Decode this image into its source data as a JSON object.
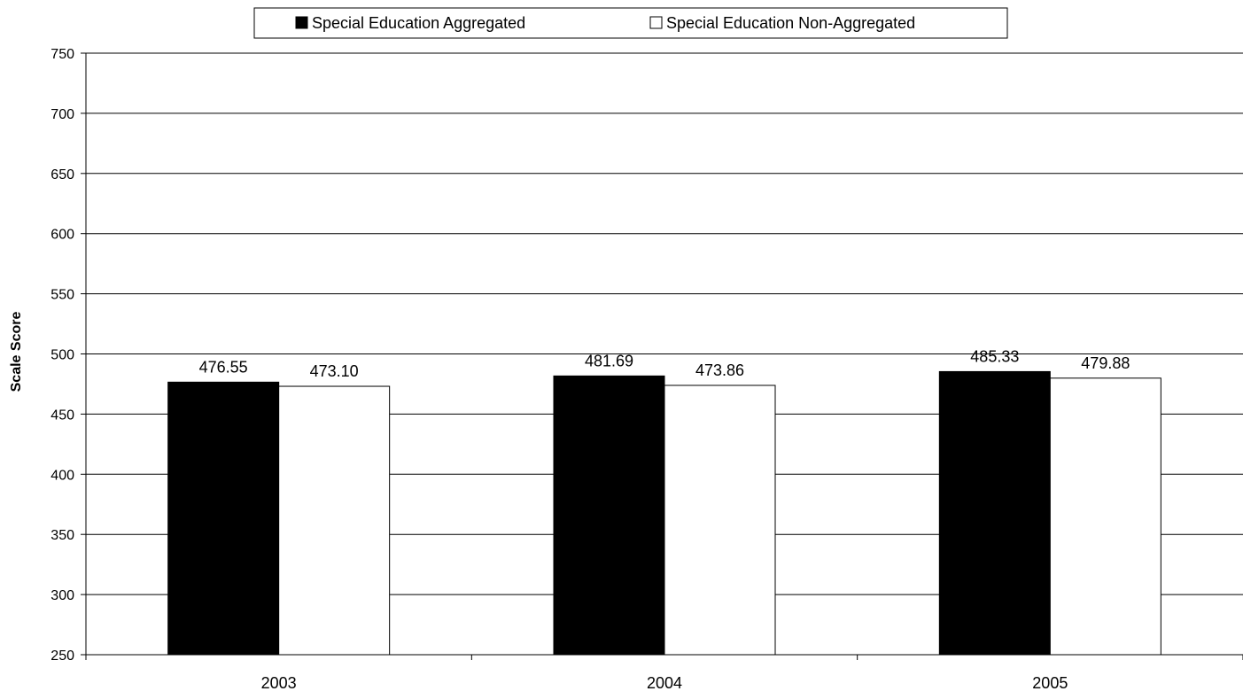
{
  "chart_data": {
    "type": "bar",
    "title": "",
    "xlabel": "",
    "ylabel": "Scale Score",
    "categories": [
      "2003",
      "2004",
      "2005"
    ],
    "series": [
      {
        "name": "Special Education Aggregated",
        "values": [
          476.55,
          481.69,
          485.33
        ],
        "value_labels": [
          "476.55",
          "481.69",
          "485.33"
        ],
        "fill": "#000000"
      },
      {
        "name": "Special Education Non-Aggregated",
        "values": [
          473.1,
          473.86,
          479.88
        ],
        "value_labels": [
          "473.10",
          "473.86",
          "479.88"
        ],
        "fill": "#ffffff"
      }
    ],
    "ylim": [
      250,
      750
    ],
    "yticks": [
      "250",
      "300",
      "350",
      "400",
      "450",
      "500",
      "550",
      "600",
      "650",
      "700",
      "750"
    ],
    "grid": true,
    "legend_position": "top-center",
    "colors": {
      "bar_outline": "#000000",
      "grid": "#000000",
      "text": "#000000"
    }
  }
}
